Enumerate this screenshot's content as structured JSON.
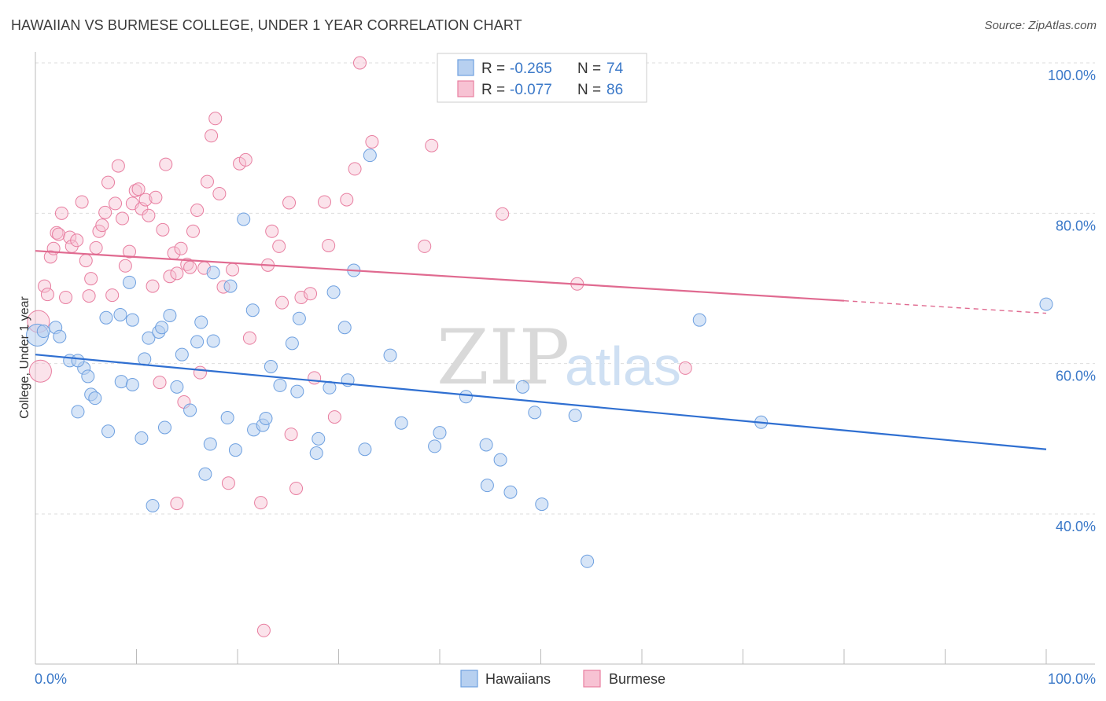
{
  "title": "HAWAIIAN VS BURMESE COLLEGE, UNDER 1 YEAR CORRELATION CHART",
  "source": "Source: ZipAtlas.com",
  "watermark": {
    "zip": "ZIP",
    "atlas": "atlas"
  },
  "legend": {
    "r_label": "R =",
    "n_label": "N =",
    "series": [
      {
        "name": "Hawaiians",
        "r": "-0.265",
        "n": "74",
        "color": "#6ea0e0",
        "fill": "#b7d0f0"
      },
      {
        "name": "Burmese",
        "r": "-0.077",
        "n": "86",
        "color": "#e87ea0",
        "fill": "#f7c2d3"
      }
    ]
  },
  "chart_data": {
    "type": "scatter",
    "ylabel": "College, Under 1 year",
    "xlabel": "",
    "x_tick_labels": [
      "0.0%",
      "100.0%"
    ],
    "y_tick_labels": [
      "40.0%",
      "60.0%",
      "80.0%",
      "100.0%"
    ],
    "xlim": [
      0,
      100
    ],
    "ylim": [
      22,
      102
    ],
    "grid": true,
    "series": [
      {
        "name": "Hawaiians",
        "color": "#4a86d8",
        "trend": {
          "x0": 0,
          "y0": 61.2,
          "x1": 100,
          "y1": 48.6
        },
        "points": [
          [
            0.2,
            63.8
          ],
          [
            0.8,
            64.3
          ],
          [
            2.0,
            64.8
          ],
          [
            2.4,
            63.6
          ],
          [
            3.4,
            60.4
          ],
          [
            4.8,
            59.4
          ],
          [
            5.2,
            58.3
          ],
          [
            5.5,
            55.9
          ],
          [
            5.9,
            55.4
          ],
          [
            4.2,
            53.6
          ],
          [
            7.2,
            51.0
          ],
          [
            7.0,
            66.1
          ],
          [
            8.4,
            66.5
          ],
          [
            8.5,
            57.6
          ],
          [
            9.6,
            57.2
          ],
          [
            9.6,
            65.8
          ],
          [
            10.5,
            50.1
          ],
          [
            10.8,
            60.6
          ],
          [
            11.2,
            63.4
          ],
          [
            12.2,
            64.2
          ],
          [
            12.5,
            64.8
          ],
          [
            12.8,
            51.5
          ],
          [
            13.3,
            66.4
          ],
          [
            14.0,
            56.9
          ],
          [
            14.5,
            61.2
          ],
          [
            15.3,
            53.8
          ],
          [
            16.0,
            62.9
          ],
          [
            16.4,
            65.5
          ],
          [
            17.3,
            49.3
          ],
          [
            16.8,
            45.3
          ],
          [
            17.6,
            63.0
          ],
          [
            19.0,
            52.8
          ],
          [
            19.3,
            70.3
          ],
          [
            19.8,
            48.5
          ],
          [
            20.6,
            79.2
          ],
          [
            21.5,
            67.1
          ],
          [
            21.6,
            51.2
          ],
          [
            22.5,
            51.8
          ],
          [
            22.8,
            52.7
          ],
          [
            23.3,
            59.6
          ],
          [
            24.2,
            57.1
          ],
          [
            25.4,
            62.7
          ],
          [
            25.9,
            56.3
          ],
          [
            26.1,
            66.0
          ],
          [
            27.8,
            48.1
          ],
          [
            28.0,
            50.0
          ],
          [
            29.1,
            56.8
          ],
          [
            29.5,
            69.5
          ],
          [
            30.6,
            64.8
          ],
          [
            30.9,
            57.8
          ],
          [
            31.5,
            72.4
          ],
          [
            32.6,
            48.6
          ],
          [
            33.1,
            87.7
          ],
          [
            35.1,
            61.1
          ],
          [
            36.2,
            52.1
          ],
          [
            39.5,
            49.0
          ],
          [
            40.0,
            50.8
          ],
          [
            42.6,
            55.6
          ],
          [
            44.6,
            49.2
          ],
          [
            44.7,
            43.8
          ],
          [
            46.0,
            47.2
          ],
          [
            47.0,
            42.9
          ],
          [
            48.2,
            56.9
          ],
          [
            49.4,
            53.5
          ],
          [
            50.1,
            41.3
          ],
          [
            53.4,
            53.1
          ],
          [
            54.6,
            33.7
          ],
          [
            65.7,
            65.8
          ],
          [
            71.8,
            52.2
          ],
          [
            100.0,
            67.9
          ],
          [
            4.2,
            60.4
          ],
          [
            11.6,
            41.1
          ],
          [
            9.3,
            70.8
          ],
          [
            17.6,
            72.1
          ]
        ]
      },
      {
        "name": "Burmese",
        "color": "#e06a90",
        "trend": {
          "x0": 0,
          "y0": 75.0,
          "x1": 100,
          "y1": 66.7,
          "solid_until": 80
        },
        "points": [
          [
            0.3,
            65.6
          ],
          [
            0.5,
            59.0
          ],
          [
            0.9,
            70.3
          ],
          [
            1.2,
            69.2
          ],
          [
            1.5,
            74.2
          ],
          [
            1.8,
            75.3
          ],
          [
            2.1,
            77.4
          ],
          [
            2.3,
            77.2
          ],
          [
            2.6,
            80.0
          ],
          [
            3.0,
            68.8
          ],
          [
            3.4,
            76.8
          ],
          [
            3.6,
            75.6
          ],
          [
            4.1,
            76.4
          ],
          [
            4.6,
            81.5
          ],
          [
            5.0,
            73.7
          ],
          [
            5.5,
            71.3
          ],
          [
            6.0,
            75.4
          ],
          [
            6.3,
            77.6
          ],
          [
            6.6,
            78.4
          ],
          [
            6.9,
            80.1
          ],
          [
            7.2,
            84.1
          ],
          [
            7.6,
            69.1
          ],
          [
            7.9,
            81.3
          ],
          [
            8.2,
            86.3
          ],
          [
            8.6,
            79.3
          ],
          [
            8.9,
            73.0
          ],
          [
            9.3,
            74.9
          ],
          [
            9.6,
            81.3
          ],
          [
            9.9,
            83.0
          ],
          [
            10.2,
            83.2
          ],
          [
            10.5,
            80.6
          ],
          [
            10.9,
            81.8
          ],
          [
            11.2,
            79.7
          ],
          [
            11.6,
            70.3
          ],
          [
            11.9,
            82.1
          ],
          [
            12.3,
            57.5
          ],
          [
            12.6,
            77.8
          ],
          [
            12.9,
            86.5
          ],
          [
            13.3,
            71.6
          ],
          [
            13.7,
            74.7
          ],
          [
            14.0,
            72.0
          ],
          [
            14.4,
            75.3
          ],
          [
            14.7,
            54.9
          ],
          [
            15.0,
            73.2
          ],
          [
            15.3,
            72.8
          ],
          [
            15.6,
            77.6
          ],
          [
            16.0,
            80.4
          ],
          [
            16.3,
            58.8
          ],
          [
            16.7,
            72.7
          ],
          [
            17.0,
            84.2
          ],
          [
            17.4,
            90.3
          ],
          [
            17.8,
            92.6
          ],
          [
            18.2,
            82.6
          ],
          [
            18.6,
            70.2
          ],
          [
            19.1,
            44.1
          ],
          [
            19.5,
            72.5
          ],
          [
            20.2,
            86.6
          ],
          [
            20.8,
            87.1
          ],
          [
            21.2,
            63.4
          ],
          [
            22.3,
            41.5
          ],
          [
            22.6,
            24.5
          ],
          [
            23.0,
            73.1
          ],
          [
            23.4,
            77.6
          ],
          [
            24.1,
            75.6
          ],
          [
            24.4,
            68.1
          ],
          [
            25.1,
            81.4
          ],
          [
            25.3,
            50.6
          ],
          [
            25.8,
            43.4
          ],
          [
            26.3,
            68.8
          ],
          [
            27.2,
            69.3
          ],
          [
            27.6,
            58.1
          ],
          [
            28.6,
            81.5
          ],
          [
            29.0,
            75.7
          ],
          [
            29.6,
            52.9
          ],
          [
            30.8,
            81.8
          ],
          [
            31.6,
            85.9
          ],
          [
            32.1,
            100.0
          ],
          [
            33.3,
            89.5
          ],
          [
            38.5,
            75.6
          ],
          [
            39.2,
            89.0
          ],
          [
            42.6,
            99.8
          ],
          [
            46.2,
            79.9
          ],
          [
            53.6,
            70.6
          ],
          [
            64.3,
            59.4
          ],
          [
            14.0,
            41.4
          ],
          [
            5.3,
            69.0
          ]
        ]
      }
    ]
  }
}
